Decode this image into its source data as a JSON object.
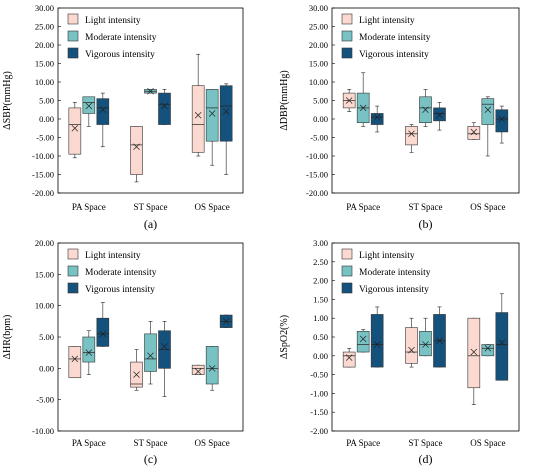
{
  "colors": {
    "light": "#fbd9d0",
    "moderate": "#78c2c4",
    "vigorous": "#14527d",
    "frame": "#000000"
  },
  "chart_data": [
    {
      "type": "box",
      "panel_label": "(a)",
      "ylabel": "ΔSBP(mmHg)",
      "ylim": [
        -20,
        30
      ],
      "ytick_step": 5,
      "yticks": [
        "-20.00",
        "-15.00",
        "-10.00",
        "-5.00",
        "0.00",
        "5.00",
        "10.00",
        "15.00",
        "20.00",
        "25.00",
        "30.00"
      ],
      "categories": [
        "PA Space",
        "ST Space",
        "OS Space"
      ],
      "legend": [
        "Light intensity",
        "Moderate intensity",
        "Vigorous intensity"
      ],
      "legend_position": "top-left",
      "series": [
        {
          "name": "Light intensity",
          "color_key": "light",
          "boxes": [
            {
              "min": -10.5,
              "q1": -9.5,
              "median": -1.5,
              "q3": 3.0,
              "max": 4.5,
              "mean": -2.5
            },
            {
              "min": -17.0,
              "q1": -15.0,
              "median": -7.0,
              "q3": -2.0,
              "max": -2.0,
              "mean": -7.5
            },
            {
              "min": -10.0,
              "q1": -9.0,
              "median": -1.5,
              "q3": 9.0,
              "max": 17.5,
              "mean": 1.0
            }
          ]
        },
        {
          "name": "Moderate intensity",
          "color_key": "moderate",
          "boxes": [
            {
              "min": -2.0,
              "q1": 1.5,
              "median": 4.5,
              "q3": 6.0,
              "max": 6.0,
              "mean": 3.5
            },
            {
              "min": 7.0,
              "q1": 7.0,
              "median": 7.5,
              "q3": 8.0,
              "max": 8.0,
              "mean": 7.5
            },
            {
              "min": -12.5,
              "q1": -6.0,
              "median": 3.0,
              "q3": 8.0,
              "max": 8.0,
              "mean": 1.5
            }
          ]
        },
        {
          "name": "Vigorous intensity",
          "color_key": "vigorous",
          "boxes": [
            {
              "min": -7.5,
              "q1": -1.5,
              "median": 3.0,
              "q3": 5.5,
              "max": 7.0,
              "mean": 2.5
            },
            {
              "min": -1.5,
              "q1": -1.5,
              "median": 4.0,
              "q3": 7.0,
              "max": 8.0,
              "mean": 3.5
            },
            {
              "min": -15.0,
              "q1": -6.0,
              "median": 3.5,
              "q3": 9.0,
              "max": 9.5,
              "mean": 2.0
            }
          ]
        }
      ]
    },
    {
      "type": "box",
      "panel_label": "(b)",
      "ylabel": "ΔDBP(mmHg)",
      "ylim": [
        -20,
        30
      ],
      "ytick_step": 5,
      "yticks": [
        "-20.00",
        "-15.00",
        "-10.00",
        "-5.00",
        "0.00",
        "5.00",
        "10.00",
        "15.00",
        "20.00",
        "25.00",
        "30.00"
      ],
      "categories": [
        "PA Space",
        "ST Space",
        "OS Space"
      ],
      "legend": [
        "Light intensity",
        "Moderate intensity",
        "Vigorous intensity"
      ],
      "legend_position": "top-left",
      "series": [
        {
          "name": "Light intensity",
          "color_key": "light",
          "boxes": [
            {
              "min": 2.0,
              "q1": 3.0,
              "median": 5.0,
              "q3": 7.0,
              "max": 8.0,
              "mean": 5.0
            },
            {
              "min": -9.0,
              "q1": -7.0,
              "median": -4.0,
              "q3": -2.0,
              "max": -1.5,
              "mean": -4.0
            },
            {
              "min": -5.5,
              "q1": -5.5,
              "median": -4.0,
              "q3": -2.0,
              "max": -1.0,
              "mean": -3.5
            }
          ]
        },
        {
          "name": "Moderate intensity",
          "color_key": "moderate",
          "boxes": [
            {
              "min": -2.0,
              "q1": -1.0,
              "median": 3.0,
              "q3": 7.0,
              "max": 12.5,
              "mean": 3.0
            },
            {
              "min": -2.0,
              "q1": -1.0,
              "median": 3.0,
              "q3": 6.0,
              "max": 8.0,
              "mean": 2.5
            },
            {
              "min": -10.0,
              "q1": -1.5,
              "median": 4.0,
              "q3": 5.5,
              "max": 6.0,
              "mean": 2.5
            }
          ]
        },
        {
          "name": "Vigorous intensity",
          "color_key": "vigorous",
          "boxes": [
            {
              "min": -3.5,
              "q1": -1.5,
              "median": 0.5,
              "q3": 1.5,
              "max": 3.5,
              "mean": 0.5
            },
            {
              "min": -3.0,
              "q1": -0.5,
              "median": 1.5,
              "q3": 3.0,
              "max": 4.5,
              "mean": 1.0
            },
            {
              "min": -6.5,
              "q1": -3.5,
              "median": 0.0,
              "q3": 2.5,
              "max": 3.5,
              "mean": 0.0
            }
          ]
        }
      ]
    },
    {
      "type": "box",
      "panel_label": "(c)",
      "ylabel": "ΔHR(bpm)",
      "ylim": [
        -10,
        20
      ],
      "ytick_step": 5,
      "yticks": [
        "-10.00",
        "-5.00",
        "0.00",
        "5.00",
        "10.00",
        "15.00",
        "20.00"
      ],
      "categories": [
        "PA Space",
        "ST Space",
        "OS Space"
      ],
      "legend": [
        "Light intensity",
        "Moderate intensity",
        "Vigorous intensity"
      ],
      "legend_position": "top-left",
      "series": [
        {
          "name": "Light intensity",
          "color_key": "light",
          "boxes": [
            {
              "min": -1.5,
              "q1": -1.5,
              "median": 1.5,
              "q3": 3.5,
              "max": 3.5,
              "mean": 1.5
            },
            {
              "min": -3.5,
              "q1": -3.0,
              "median": -2.5,
              "q3": 1.0,
              "max": 3.0,
              "mean": -1.0
            },
            {
              "min": -1.0,
              "q1": -1.0,
              "median": 0.0,
              "q3": 0.5,
              "max": 0.5,
              "mean": -0.5
            }
          ]
        },
        {
          "name": "Moderate intensity",
          "color_key": "moderate",
          "boxes": [
            {
              "min": -1.0,
              "q1": 1.0,
              "median": 2.5,
              "q3": 5.0,
              "max": 6.0,
              "mean": 2.5
            },
            {
              "min": -2.5,
              "q1": -0.5,
              "median": 1.5,
              "q3": 5.5,
              "max": 7.5,
              "mean": 2.0
            },
            {
              "min": -3.5,
              "q1": -2.5,
              "median": 0.0,
              "q3": 3.5,
              "max": 3.5,
              "mean": 0.0
            }
          ]
        },
        {
          "name": "Vigorous intensity",
          "color_key": "vigorous",
          "boxes": [
            {
              "min": 3.5,
              "q1": 3.5,
              "median": 5.5,
              "q3": 8.0,
              "max": 10.5,
              "mean": 5.5
            },
            {
              "min": -4.5,
              "q1": 0.0,
              "median": 3.0,
              "q3": 6.0,
              "max": 7.5,
              "mean": 3.5
            },
            {
              "min": 6.5,
              "q1": 6.5,
              "median": 7.5,
              "q3": 8.5,
              "max": 8.5,
              "mean": 7.5
            }
          ]
        }
      ]
    },
    {
      "type": "box",
      "panel_label": "(d)",
      "ylabel": "ΔSpO2(%)",
      "ylim": [
        -2,
        3
      ],
      "ytick_step": 0.5,
      "yticks": [
        "-2.00",
        "-1.50",
        "-1.00",
        "-0.50",
        "0.00",
        "0.50",
        "1.00",
        "1.50",
        "2.00",
        "2.50",
        "3.00"
      ],
      "categories": [
        "PA Space",
        "ST Space",
        "OS Space"
      ],
      "legend": [
        "Light intensity",
        "Moderate intensity",
        "Vigorous intensity"
      ],
      "legend_position": "top-left",
      "series": [
        {
          "name": "Light intensity",
          "color_key": "light",
          "boxes": [
            {
              "min": -0.3,
              "q1": -0.3,
              "median": 0.0,
              "q3": 0.1,
              "max": 0.2,
              "mean": -0.05
            },
            {
              "min": -0.3,
              "q1": -0.2,
              "median": 0.1,
              "q3": 0.75,
              "max": 1.0,
              "mean": 0.15
            },
            {
              "min": -1.3,
              "q1": -0.85,
              "median": 0.0,
              "q3": 1.0,
              "max": 1.0,
              "mean": 0.1
            }
          ]
        },
        {
          "name": "Moderate intensity",
          "color_key": "moderate",
          "boxes": [
            {
              "min": 0.1,
              "q1": 0.1,
              "median": 0.3,
              "q3": 0.65,
              "max": 0.7,
              "mean": 0.45
            },
            {
              "min": 0.0,
              "q1": 0.0,
              "median": 0.3,
              "q3": 0.65,
              "max": 1.0,
              "mean": 0.3
            },
            {
              "min": 0.0,
              "q1": 0.0,
              "median": 0.2,
              "q3": 0.3,
              "max": 0.3,
              "mean": 0.2
            }
          ]
        },
        {
          "name": "Vigorous intensity",
          "color_key": "vigorous",
          "boxes": [
            {
              "min": -0.3,
              "q1": -0.3,
              "median": 0.3,
              "q3": 1.1,
              "max": 1.3,
              "mean": 0.3
            },
            {
              "min": -0.3,
              "q1": -0.3,
              "median": 0.4,
              "q3": 1.1,
              "max": 1.3,
              "mean": 0.4
            },
            {
              "min": -0.65,
              "q1": -0.65,
              "median": 0.3,
              "q3": 1.15,
              "max": 1.65,
              "mean": 0.35
            }
          ]
        }
      ]
    }
  ]
}
